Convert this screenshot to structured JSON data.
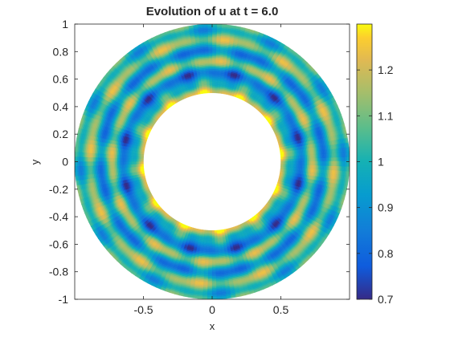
{
  "chart_data": {
    "type": "heatmap",
    "title": "Evolution of u at t = 6.0",
    "xlabel": "x",
    "ylabel": "y",
    "xlim": [
      -1,
      1
    ],
    "ylim": [
      -1,
      1
    ],
    "xticks": [
      -0.5,
      0,
      0.5
    ],
    "xtick_labels": [
      "-0.5",
      "0",
      "0.5"
    ],
    "yticks": [
      1,
      0.8,
      0.6,
      0.4,
      0.2,
      0,
      -0.2,
      -0.4,
      -0.6,
      -0.8,
      -1
    ],
    "ytick_labels": [
      "1",
      "0.8",
      "0.6",
      "0.4",
      "0.2",
      "0",
      "-0.2",
      "-0.4",
      "-0.6",
      "-0.8",
      "-1"
    ],
    "grid": false,
    "domain": {
      "shape": "annulus",
      "inner_radius": 0.5,
      "outer_radius": 1.0,
      "center": [
        0,
        0
      ]
    },
    "field": {
      "description_ring_radii": [
        0.5,
        0.57,
        0.65,
        0.73,
        0.81,
        0.89,
        0.96,
        1.0
      ],
      "ring_values": [
        1.25,
        1.0,
        0.8,
        1.15,
        0.85,
        1.15,
        0.95,
        1.05
      ],
      "angular_modes": 12
    },
    "colorbar": {
      "colormap": "parula",
      "clim": [
        0.7,
        1.3
      ],
      "ticks": [
        1.2,
        1.1,
        1,
        0.9,
        0.8,
        0.7
      ],
      "tick_labels": [
        "1.2",
        "1.1",
        "1",
        "0.9",
        "0.8",
        "0.7"
      ]
    }
  }
}
